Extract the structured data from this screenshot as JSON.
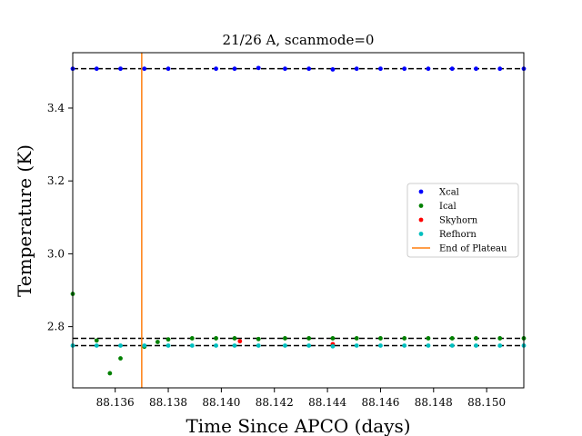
{
  "chart_data": {
    "type": "scatter",
    "title": "21/26 A, scanmode=0",
    "xlabel": "Time Since APCO (days)",
    "ylabel": "Temperature (K)",
    "xlim": [
      88.1344,
      88.1514
    ],
    "ylim": [
      2.632,
      3.552
    ],
    "xticks": [
      88.136,
      88.138,
      88.14,
      88.142,
      88.144,
      88.146,
      88.148,
      88.15
    ],
    "xtick_labels": [
      "88.136",
      "88.138",
      "88.140",
      "88.142",
      "88.144",
      "88.146",
      "88.148",
      "88.150"
    ],
    "yticks": [
      2.8,
      3.0,
      3.2,
      3.4
    ],
    "ytick_labels": [
      "2.8",
      "3.0",
      "3.2",
      "3.4"
    ],
    "grid": false,
    "legend_position": "center-right",
    "hlines": [
      3.508,
      2.768,
      2.748
    ],
    "vline": {
      "name": "End of Plateau",
      "x": 88.137,
      "color": "#ff7f0e"
    },
    "series": [
      {
        "name": "Xcal",
        "color": "#0000ff",
        "x": [
          88.1344,
          88.1353,
          88.1362,
          88.1371,
          88.138,
          88.1398,
          88.1405,
          88.1414,
          88.1424,
          88.1433,
          88.1442,
          88.1451,
          88.146,
          88.1469,
          88.1478,
          88.1487,
          88.1496,
          88.1505,
          88.1514
        ],
        "y": [
          3.508,
          3.508,
          3.508,
          3.508,
          3.508,
          3.508,
          3.508,
          3.51,
          3.508,
          3.508,
          3.506,
          3.508,
          3.508,
          3.508,
          3.508,
          3.508,
          3.508,
          3.508,
          3.508
        ]
      },
      {
        "name": "Ical",
        "color": "#008000",
        "x": [
          88.1344,
          88.1353,
          88.1358,
          88.1362,
          88.1371,
          88.1376,
          88.138,
          88.1389,
          88.1398,
          88.1405,
          88.1414,
          88.1424,
          88.1433,
          88.1442,
          88.1451,
          88.146,
          88.1469,
          88.1478,
          88.1487,
          88.1496,
          88.1505,
          88.1514
        ],
        "y": [
          2.89,
          2.762,
          2.672,
          2.713,
          2.745,
          2.758,
          2.765,
          2.768,
          2.768,
          2.768,
          2.766,
          2.768,
          2.768,
          2.768,
          2.768,
          2.768,
          2.768,
          2.768,
          2.768,
          2.768,
          2.768,
          2.768
        ]
      },
      {
        "name": "Skyhorn",
        "color": "#ff0000",
        "x": [
          88.1407,
          88.1442
        ],
        "y": [
          2.76,
          2.752
        ]
      },
      {
        "name": "Refhorn",
        "color": "#00bfbf",
        "x": [
          88.1344,
          88.1353,
          88.1362,
          88.1371,
          88.138,
          88.1389,
          88.1398,
          88.1405,
          88.1414,
          88.1424,
          88.1433,
          88.1442,
          88.1451,
          88.146,
          88.1469,
          88.1478,
          88.1487,
          88.1496,
          88.1505,
          88.1514
        ],
        "y": [
          2.748,
          2.748,
          2.748,
          2.748,
          2.748,
          2.748,
          2.748,
          2.748,
          2.748,
          2.748,
          2.748,
          2.746,
          2.748,
          2.748,
          2.748,
          2.748,
          2.748,
          2.748,
          2.748,
          2.748
        ]
      }
    ]
  }
}
